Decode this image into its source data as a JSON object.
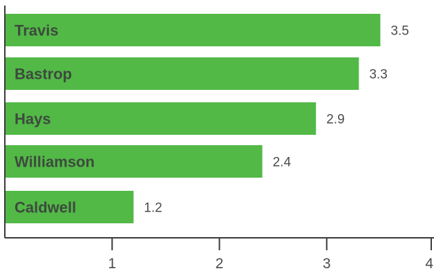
{
  "chart_data": {
    "type": "bar",
    "orientation": "horizontal",
    "categories": [
      "Travis",
      "Bastrop",
      "Hays",
      "Williamson",
      "Caldwell"
    ],
    "values": [
      3.5,
      3.3,
      2.9,
      2.4,
      1.2
    ],
    "value_labels": [
      "3.5",
      "3.3",
      "2.9",
      "2.4",
      "1.2"
    ],
    "xlim": [
      0,
      4
    ],
    "x_ticks": [
      1,
      2,
      3,
      4
    ],
    "x_tick_labels": [
      "1",
      "2",
      "3",
      "4"
    ],
    "bar_color": "#52b947",
    "grid": false,
    "legend": "none"
  }
}
